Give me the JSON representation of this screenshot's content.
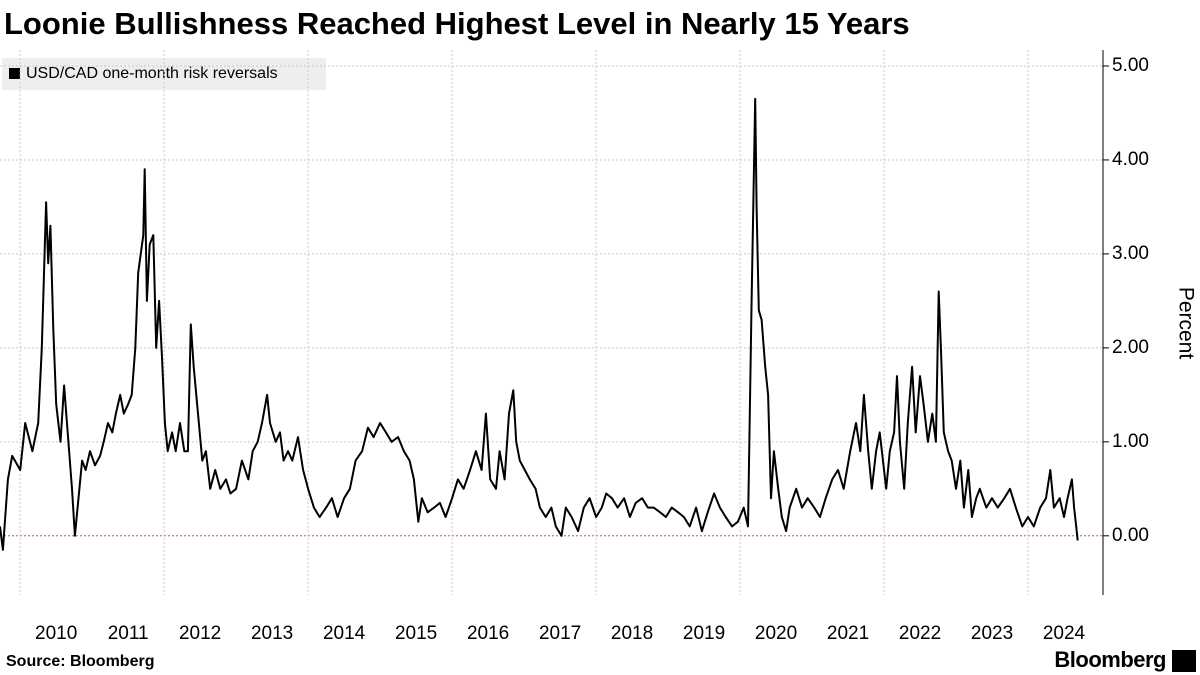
{
  "chart_data": {
    "type": "line",
    "title": "Loonie Bullishness Reached Highest Level in Nearly 15 Years",
    "source": "Source: Bloomberg",
    "brand": "Bloomberg",
    "y_axis_label": "Percent",
    "x": [
      2009.72,
      2009.76,
      2009.83,
      2009.89,
      2010.0,
      2010.07,
      2010.17,
      2010.25,
      2010.3,
      2010.36,
      2010.39,
      2010.42,
      2010.46,
      2010.5,
      2010.56,
      2010.61,
      2010.67,
      2010.72,
      2010.76,
      2010.81,
      2010.86,
      2010.91,
      2010.97,
      2011.04,
      2011.11,
      2011.16,
      2011.22,
      2011.28,
      2011.33,
      2011.39,
      2011.44,
      2011.5,
      2011.55,
      2011.6,
      2011.64,
      2011.71,
      2011.73,
      2011.76,
      2011.8,
      2011.85,
      2011.89,
      2011.93,
      2011.97,
      2012.01,
      2012.05,
      2012.11,
      2012.16,
      2012.22,
      2012.28,
      2012.33,
      2012.37,
      2012.41,
      2012.47,
      2012.53,
      2012.58,
      2012.64,
      2012.71,
      2012.78,
      2012.86,
      2012.92,
      2013.0,
      2013.08,
      2013.17,
      2013.23,
      2013.3,
      2013.36,
      2013.43,
      2013.47,
      2013.55,
      2013.61,
      2013.66,
      2013.72,
      2013.78,
      2013.86,
      2013.93,
      2014.0,
      2014.08,
      2014.16,
      2014.25,
      2014.33,
      2014.41,
      2014.5,
      2014.58,
      2014.66,
      2014.75,
      2014.83,
      2014.91,
      2015.0,
      2015.08,
      2015.16,
      2015.25,
      2015.33,
      2015.41,
      2015.47,
      2015.53,
      2015.58,
      2015.66,
      2015.75,
      2015.83,
      2015.91,
      2016.0,
      2016.08,
      2016.16,
      2016.25,
      2016.33,
      2016.41,
      2016.47,
      2016.53,
      2016.61,
      2016.66,
      2016.73,
      2016.79,
      2016.85,
      2016.89,
      2016.94,
      2017.01,
      2017.08,
      2017.16,
      2017.22,
      2017.3,
      2017.38,
      2017.44,
      2017.52,
      2017.58,
      2017.66,
      2017.75,
      2017.83,
      2017.91,
      2018.0,
      2018.08,
      2018.14,
      2018.22,
      2018.3,
      2018.39,
      2018.47,
      2018.55,
      2018.64,
      2018.72,
      2018.8,
      2018.89,
      2018.97,
      2019.05,
      2019.14,
      2019.22,
      2019.3,
      2019.39,
      2019.47,
      2019.55,
      2019.64,
      2019.72,
      2019.8,
      2019.89,
      2019.97,
      2020.05,
      2020.11,
      2020.16,
      2020.21,
      2020.23,
      2020.26,
      2020.3,
      2020.35,
      2020.39,
      2020.43,
      2020.47,
      2020.53,
      2020.58,
      2020.64,
      2020.69,
      2020.78,
      2020.86,
      2020.94,
      2021.03,
      2021.11,
      2021.19,
      2021.28,
      2021.36,
      2021.44,
      2021.53,
      2021.61,
      2021.67,
      2021.72,
      2021.78,
      2021.83,
      2021.89,
      2021.94,
      2022.03,
      2022.08,
      2022.14,
      2022.18,
      2022.22,
      2022.28,
      2022.33,
      2022.39,
      2022.44,
      2022.5,
      2022.55,
      2022.61,
      2022.67,
      2022.72,
      2022.76,
      2022.79,
      2022.83,
      2022.89,
      2022.94,
      2023.0,
      2023.06,
      2023.11,
      2023.17,
      2023.22,
      2023.28,
      2023.33,
      2023.42,
      2023.5,
      2023.58,
      2023.67,
      2023.75,
      2023.83,
      2023.92,
      2024.0,
      2024.08,
      2024.17,
      2024.25,
      2024.31,
      2024.36,
      2024.44,
      2024.5,
      2024.55,
      2024.61,
      2024.64,
      2024.67,
      2024.69
    ],
    "series": [
      {
        "name": "USD/CAD one-month risk reversals",
        "color": "#000000",
        "values": [
          0.1,
          -0.15,
          0.6,
          0.85,
          0.7,
          1.2,
          0.9,
          1.2,
          2.0,
          3.55,
          2.9,
          3.3,
          2.2,
          1.4,
          1.0,
          1.6,
          1.0,
          0.5,
          0.0,
          0.4,
          0.8,
          0.7,
          0.9,
          0.75,
          0.85,
          1.0,
          1.2,
          1.1,
          1.3,
          1.5,
          1.3,
          1.4,
          1.5,
          2.0,
          2.8,
          3.2,
          3.9,
          2.5,
          3.1,
          3.2,
          2.0,
          2.5,
          1.9,
          1.2,
          0.9,
          1.1,
          0.9,
          1.2,
          0.9,
          0.9,
          2.25,
          1.8,
          1.3,
          0.8,
          0.9,
          0.5,
          0.7,
          0.5,
          0.6,
          0.45,
          0.5,
          0.8,
          0.6,
          0.9,
          1.0,
          1.2,
          1.5,
          1.2,
          1.0,
          1.1,
          0.8,
          0.9,
          0.8,
          1.05,
          0.7,
          0.5,
          0.3,
          0.2,
          0.3,
          0.4,
          0.2,
          0.4,
          0.5,
          0.8,
          0.9,
          1.15,
          1.05,
          1.2,
          1.1,
          1.0,
          1.05,
          0.9,
          0.8,
          0.6,
          0.15,
          0.4,
          0.25,
          0.3,
          0.35,
          0.2,
          0.4,
          0.6,
          0.5,
          0.7,
          0.9,
          0.7,
          1.3,
          0.6,
          0.5,
          0.9,
          0.6,
          1.3,
          1.55,
          1.0,
          0.8,
          0.7,
          0.6,
          0.5,
          0.3,
          0.2,
          0.3,
          0.1,
          0.0,
          0.3,
          0.2,
          0.05,
          0.3,
          0.4,
          0.2,
          0.3,
          0.45,
          0.4,
          0.3,
          0.4,
          0.2,
          0.35,
          0.4,
          0.3,
          0.3,
          0.25,
          0.2,
          0.3,
          0.25,
          0.2,
          0.1,
          0.3,
          0.05,
          0.25,
          0.45,
          0.3,
          0.2,
          0.1,
          0.15,
          0.3,
          0.1,
          2.5,
          4.65,
          3.5,
          2.4,
          2.3,
          1.8,
          1.5,
          0.4,
          0.9,
          0.5,
          0.2,
          0.05,
          0.3,
          0.5,
          0.3,
          0.4,
          0.3,
          0.2,
          0.4,
          0.6,
          0.7,
          0.5,
          0.9,
          1.2,
          0.9,
          1.5,
          0.9,
          0.5,
          0.9,
          1.1,
          0.5,
          0.9,
          1.1,
          1.7,
          1.0,
          0.5,
          1.2,
          1.8,
          1.1,
          1.7,
          1.4,
          1.0,
          1.3,
          1.0,
          2.6,
          2.0,
          1.1,
          0.9,
          0.8,
          0.5,
          0.8,
          0.3,
          0.7,
          0.2,
          0.4,
          0.5,
          0.3,
          0.4,
          0.3,
          0.4,
          0.5,
          0.3,
          0.1,
          0.2,
          0.1,
          0.3,
          0.4,
          0.7,
          0.3,
          0.4,
          0.2,
          0.4,
          0.6,
          0.3,
          0.1,
          -0.05
        ]
      }
    ],
    "xlim": [
      2009.72,
      2025.0
    ],
    "xticks": [
      2010,
      2011,
      2012,
      2013,
      2014,
      2015,
      2016,
      2017,
      2018,
      2019,
      2020,
      2021,
      2022,
      2023,
      2024
    ],
    "ylim": [
      -0.63,
      5.17
    ],
    "yticks": [
      {
        "value": 0,
        "label": "0.00"
      },
      {
        "value": 1,
        "label": "1.00"
      },
      {
        "value": 2,
        "label": "2.00"
      },
      {
        "value": 3,
        "label": "3.00"
      },
      {
        "value": 4,
        "label": "4.00"
      },
      {
        "value": 5,
        "label": "5.00"
      }
    ],
    "grid": true,
    "zero_line_color": "#d9534f",
    "legend": "upper left"
  }
}
